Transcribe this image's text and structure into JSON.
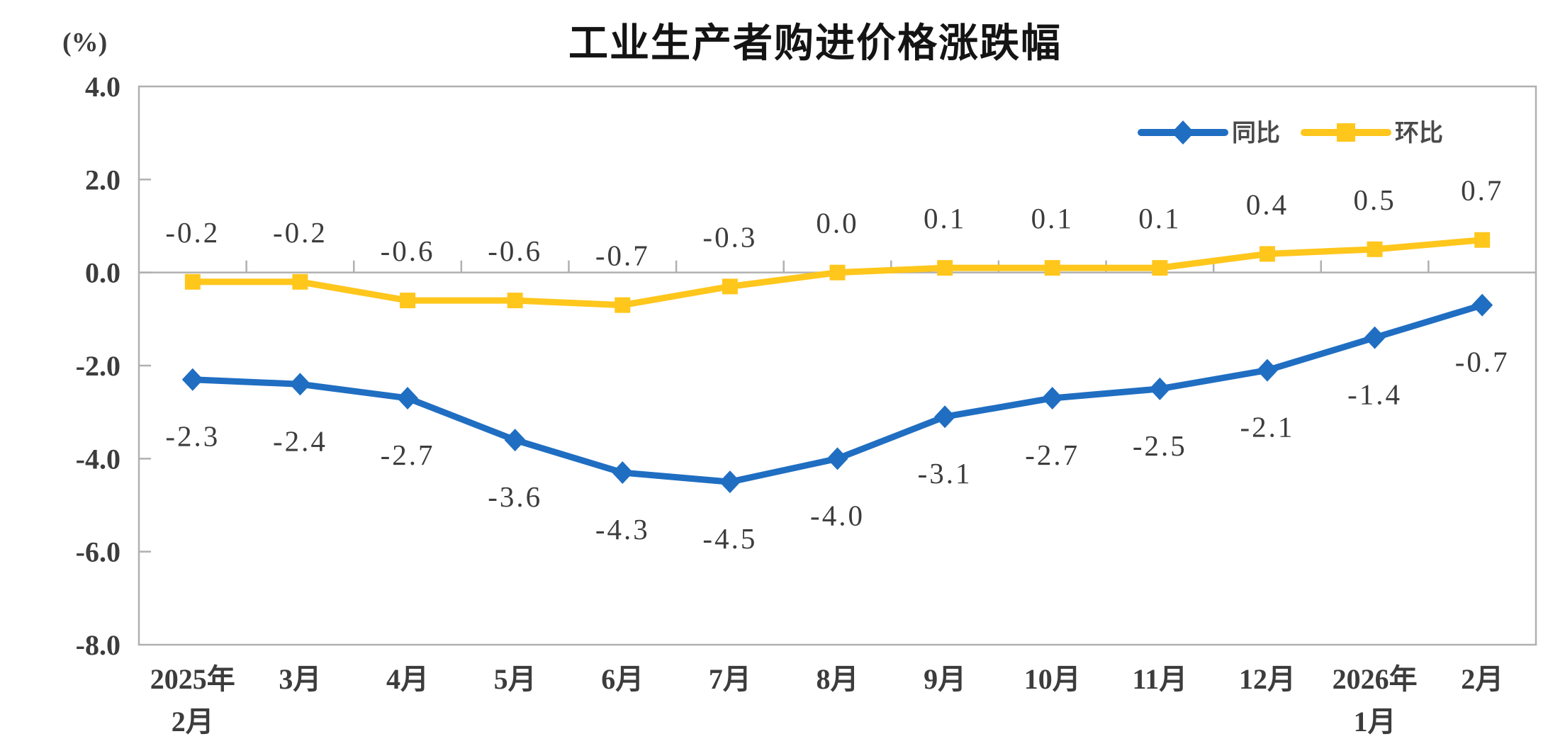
{
  "chart": {
    "title": "工业生产者购进价格涨跌幅",
    "unit_label": "(%)"
  },
  "chart_data": {
    "type": "line",
    "title": "工业生产者购进价格涨跌幅",
    "unit": "%",
    "categories": [
      [
        "2025年",
        "2月"
      ],
      [
        "3月"
      ],
      [
        "4月"
      ],
      [
        "5月"
      ],
      [
        "6月"
      ],
      [
        "7月"
      ],
      [
        "8月"
      ],
      [
        "9月"
      ],
      [
        "10月"
      ],
      [
        "11月"
      ],
      [
        "12月"
      ],
      [
        "2026年",
        "1月"
      ],
      [
        "2月"
      ]
    ],
    "series": [
      {
        "name": "同比",
        "marker": "diamond",
        "color": "#1F6EC2",
        "label_position": "below",
        "values": [
          -2.3,
          -2.4,
          -2.7,
          -3.6,
          -4.3,
          -4.5,
          -4.0,
          -3.1,
          -2.7,
          -2.5,
          -2.1,
          -1.4,
          -0.7
        ],
        "labels": [
          "-2.3",
          "-2.4",
          "-2.7",
          "-3.6",
          "-4.3",
          "-4.5",
          "-4.0",
          "-3.1",
          "-2.7",
          "-2.5",
          "-2.1",
          "-1.4",
          "-0.7"
        ]
      },
      {
        "name": "环比",
        "marker": "square",
        "color": "#FFC61C",
        "label_position": "above",
        "values": [
          -0.2,
          -0.2,
          -0.6,
          -0.6,
          -0.7,
          -0.3,
          0.0,
          0.1,
          0.1,
          0.1,
          0.4,
          0.5,
          0.7
        ],
        "labels": [
          "-0.2",
          "-0.2",
          "-0.6",
          "-0.6",
          "-0.7",
          "-0.3",
          "0.0",
          "0.1",
          "0.1",
          "0.1",
          "0.4",
          "0.5",
          "0.7"
        ]
      }
    ],
    "ylim": [
      -8.0,
      4.0
    ],
    "ytick_step": 2.0,
    "ytick_labels": [
      "4.0",
      "2.0",
      "0.0",
      "-2.0",
      "-4.0",
      "-6.0",
      "-8.0"
    ],
    "xlabel": "",
    "ylabel": "(%)",
    "grid": false,
    "legend_position": "top-right",
    "frame_color": "#B0B0B0",
    "text_color": "#3C3C3C"
  }
}
